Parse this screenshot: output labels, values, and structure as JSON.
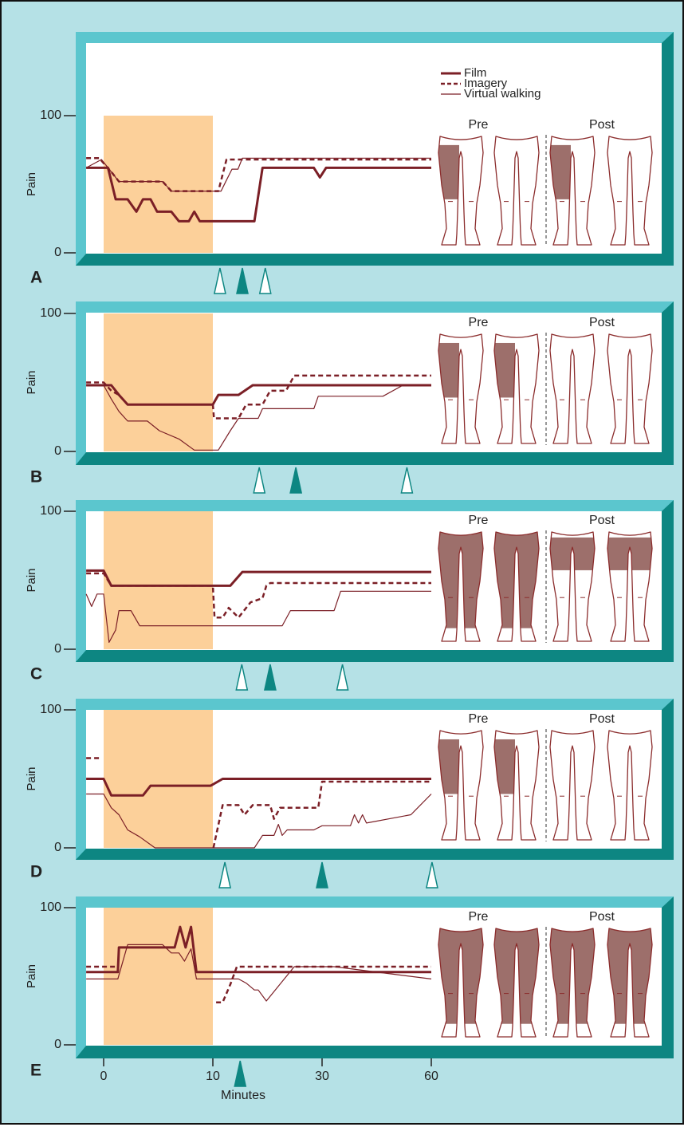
{
  "chart_data": [
    {
      "type": "line",
      "label": "A",
      "ylabel": "Pain",
      "ylim": [
        0,
        100
      ],
      "yticks": [
        0,
        100
      ],
      "xlim": [
        -1.6,
        60
      ],
      "xticks": [
        0,
        10,
        30,
        60
      ],
      "highlight": {
        "range": [
          0,
          10
        ],
        "color": "#fcd09a"
      },
      "legend": true,
      "figure_labels": [
        "Pre",
        "Post"
      ],
      "series": [
        {
          "name": "Film",
          "style": "solid",
          "color": "#7b1f26",
          "x": [
            -1.6,
            0.4,
            1.1,
            2.2,
            3.0,
            3.6,
            4.3,
            4.9,
            6.2,
            6.9,
            7.8,
            8.3,
            8.8,
            10,
            17.6,
            19.1,
            28.5,
            29.6,
            31.1,
            60
          ],
          "values": [
            62,
            62,
            39,
            39,
            30,
            39,
            39,
            30,
            30,
            23,
            23,
            30,
            23,
            23,
            23,
            62,
            62,
            55,
            62,
            62
          ]
        },
        {
          "name": "Imagery",
          "style": "dashed",
          "color": "#7b1f26",
          "x": [
            -1.6,
            -0.4,
            0.7,
            1.4,
            5.4,
            6.2,
            9.8,
            11.0,
            12.5,
            60
          ],
          "values": [
            69,
            69,
            59,
            52,
            52,
            45,
            45,
            45,
            68,
            68
          ]
        },
        {
          "name": "Virtual walking",
          "style": "thin",
          "color": "#7b1f26",
          "x": [
            -1.6,
            -0.2,
            0.7,
            1.4,
            5.4,
            6.2,
            9.8,
            11.5,
            12.5,
            13.5,
            14.6,
            15.4,
            60
          ],
          "values": [
            62,
            68,
            59,
            52,
            52,
            45,
            45,
            45,
            53,
            61,
            61,
            69,
            69
          ]
        }
      ],
      "markers": {
        "x": [
          11.3,
          15.4,
          19.6
        ],
        "filled": [
          false,
          true,
          false
        ]
      }
    },
    {
      "type": "line",
      "label": "B",
      "ylabel": "Pain",
      "ylim": [
        0,
        100
      ],
      "yticks": [
        0,
        100
      ],
      "xlim": [
        -1.6,
        60
      ],
      "xticks": [
        0,
        10,
        30,
        60
      ],
      "highlight": {
        "range": [
          0,
          10
        ],
        "color": "#fcd09a"
      },
      "figure_labels": [
        "Pre",
        "Post"
      ],
      "series": [
        {
          "style": "solid",
          "color": "#7b1f26",
          "x": [
            -1.6,
            0.7,
            1.4,
            2.2,
            10,
            11.0,
            14.7,
            17.3,
            60
          ],
          "values": [
            48,
            48,
            41,
            34,
            34,
            41,
            41,
            48,
            48
          ]
        },
        {
          "style": "dashed",
          "color": "#7b1f26",
          "x": [
            -1.6,
            0,
            0.7,
            1.4,
            2.2,
            10,
            10.2,
            14.7,
            16.1,
            19.1,
            20.5,
            23.4,
            24.9,
            60
          ],
          "values": [
            50,
            50,
            44,
            41,
            34,
            34,
            24,
            24,
            34,
            34,
            44,
            44,
            55,
            55
          ]
        },
        {
          "style": "thin",
          "color": "#7b1f26",
          "x": [
            -1.6,
            0,
            0.7,
            1.4,
            2.2,
            4.0,
            5.1,
            6.9,
            8.3,
            11.0,
            13.2,
            14.7,
            18.3,
            19.1,
            28.5,
            29.3,
            46.7,
            52.2,
            60
          ],
          "values": [
            48,
            48,
            38,
            29,
            22,
            22,
            15,
            9,
            1,
            1,
            15,
            24,
            24,
            31,
            31,
            40,
            40,
            48,
            48
          ]
        }
      ],
      "markers": {
        "x": [
          18.5,
          25.2,
          53.3
        ],
        "filled": [
          false,
          true,
          false
        ]
      }
    },
    {
      "type": "line",
      "label": "C",
      "ylabel": "Pain",
      "ylim": [
        0,
        100
      ],
      "yticks": [
        0,
        100
      ],
      "xlim": [
        -1.6,
        60
      ],
      "xticks": [
        0,
        10,
        30,
        60
      ],
      "highlight": {
        "range": [
          0,
          10
        ],
        "color": "#fcd09a"
      },
      "figure_labels": [
        "Pre",
        "Post"
      ],
      "series": [
        {
          "style": "solid",
          "color": "#7b1f26",
          "x": [
            -1.6,
            0,
            0.7,
            13.2,
            15.4,
            60
          ],
          "values": [
            57,
            57,
            46,
            46,
            56,
            56
          ]
        },
        {
          "style": "dashed",
          "color": "#7b1f26",
          "x": [
            -1.6,
            0,
            0.7,
            10,
            10.3,
            11.8,
            12.9,
            14.7,
            16.9,
            19.1,
            19.8,
            20.5,
            60
          ],
          "values": [
            55,
            55,
            46,
            46,
            23,
            23,
            30,
            23,
            34,
            37,
            46,
            48,
            48
          ]
        },
        {
          "style": "thin",
          "color": "#7b1f26",
          "x": [
            -1.6,
            -1.1,
            -0.6,
            0,
            0.5,
            1.1,
            1.4,
            2.5,
            3.3,
            22.7,
            24.2,
            33.3,
            35.1,
            60
          ],
          "values": [
            40,
            31,
            40,
            40,
            5,
            14,
            28,
            28,
            17,
            17,
            28,
            28,
            42,
            42
          ]
        }
      ],
      "markers": {
        "x": [
          15.3,
          20.5,
          35.6
        ],
        "filled": [
          false,
          true,
          false
        ]
      }
    },
    {
      "type": "line",
      "label": "D",
      "ylabel": "Pain",
      "ylim": [
        0,
        100
      ],
      "yticks": [
        0,
        100
      ],
      "xlim": [
        -1.6,
        60
      ],
      "xticks": [
        0,
        10,
        30,
        60
      ],
      "highlight": {
        "range": [
          0,
          10
        ],
        "color": "#fcd09a"
      },
      "figure_labels": [
        "Pre",
        "Post"
      ],
      "series": [
        {
          "style": "solid",
          "color": "#7b1f26",
          "x": [
            -1.6,
            0,
            0.7,
            3.6,
            4.3,
            9.8,
            11.8,
            60
          ],
          "values": [
            50,
            50,
            38,
            38,
            45,
            45,
            50,
            50
          ]
        },
        {
          "style": "dashed",
          "color": "#7b1f26",
          "x": [
            -1.6,
            -0.2,
            null,
            10.1,
            11.8,
            14.7,
            15.8,
            17.3,
            20.5,
            21.2,
            22.3,
            29.3,
            30,
            60
          ],
          "values": [
            65,
            65,
            null,
            0,
            31,
            31,
            24,
            31,
            31,
            21,
            29,
            29,
            48,
            48
          ]
        },
        {
          "style": "thin",
          "color": "#7b1f26",
          "x": [
            -1.6,
            0,
            0.7,
            1.4,
            2.2,
            3.3,
            4.7,
            17.6,
            19.1,
            21.2,
            22.0,
            22.7,
            23.6,
            28.5,
            30,
            37.8,
            38.9,
            40,
            41.1,
            42.2,
            54.4,
            60
          ],
          "values": [
            39,
            39,
            29,
            24,
            13,
            8,
            0,
            0,
            9,
            9,
            17,
            9,
            13,
            13,
            16,
            16,
            24,
            18,
            24,
            18,
            24,
            39
          ]
        }
      ],
      "markers": {
        "x": [
          12.2,
          30,
          60.2
        ],
        "filled": [
          false,
          true,
          false
        ]
      }
    },
    {
      "type": "line",
      "label": "E",
      "ylabel": "Pain",
      "xlabel": "Minutes",
      "show_x_axis": true,
      "ylim": [
        0,
        100
      ],
      "yticks": [
        0,
        100
      ],
      "xlim": [
        -1.6,
        60
      ],
      "xticks": [
        0,
        10,
        30,
        60
      ],
      "highlight": {
        "range": [
          0,
          10
        ],
        "color": "#fcd09a"
      },
      "figure_labels": [
        "Pre",
        "Post"
      ],
      "series": [
        {
          "style": "solid",
          "color": "#7b1f26",
          "x": [
            -1.6,
            1.3,
            1.4,
            6.5,
            7.0,
            7.5,
            8.0,
            8.5,
            60
          ],
          "values": [
            53,
            53,
            71,
            71,
            86,
            71,
            86,
            53,
            53
          ]
        },
        {
          "style": "dashed",
          "color": "#7b1f26",
          "x": [
            -1.6,
            1.3,
            null,
            10.6,
            11.8,
            13.2,
            14.4,
            60
          ],
          "values": [
            57,
            57,
            null,
            31,
            31,
            44,
            57,
            57
          ]
        },
        {
          "style": "thin",
          "color": "#7b1f26",
          "x": [
            -1.6,
            1.3,
            2.2,
            5.4,
            6.2,
            6.9,
            7.4,
            8.0,
            8.5,
            14.7,
            16.1,
            17.6,
            18.3,
            19.8,
            24.9,
            33.3,
            60
          ],
          "values": [
            48,
            48,
            73,
            73,
            67,
            67,
            61,
            70,
            48,
            48,
            45,
            40,
            40,
            32,
            57,
            57,
            48
          ]
        }
      ],
      "markers": {
        "x": [
          15.0
        ],
        "filled": [
          true
        ]
      }
    }
  ]
}
